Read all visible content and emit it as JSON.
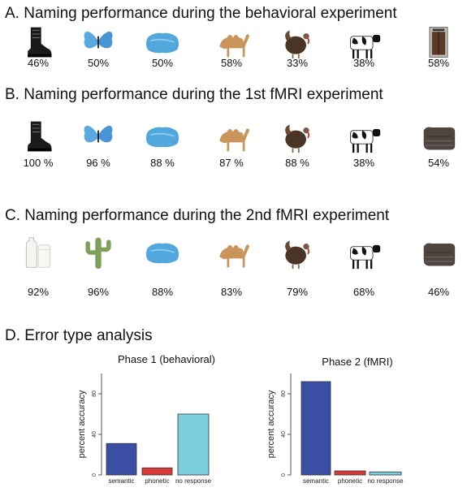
{
  "sections": [
    {
      "title": "A. Naming performance during the behavioral experiment",
      "items": [
        {
          "icon": "boot-icon",
          "percent": "46%"
        },
        {
          "icon": "butterfly-icon",
          "percent": "50%"
        },
        {
          "icon": "pillow-icon",
          "percent": "50%"
        },
        {
          "icon": "camel-icon",
          "percent": "58%"
        },
        {
          "icon": "turkey-icon",
          "percent": "33%"
        },
        {
          "icon": "cow-icon",
          "percent": "38%"
        },
        {
          "icon": "elevator-icon",
          "percent": "58%"
        }
      ]
    },
    {
      "title": "B. Naming performance during the 1st fMRI experiment",
      "items": [
        {
          "icon": "boot-icon",
          "percent": "100 %"
        },
        {
          "icon": "butterfly-icon",
          "percent": "96 %"
        },
        {
          "icon": "pillow-icon",
          "percent": "88 %"
        },
        {
          "icon": "camel-icon",
          "percent": "87 %"
        },
        {
          "icon": "turkey-icon",
          "percent": "88 %"
        },
        {
          "icon": "cow-icon",
          "percent": "38%"
        },
        {
          "icon": "blanket-icon",
          "percent": "54%"
        }
      ]
    },
    {
      "title": "C. Naming performance during the 2nd fMRI experiment",
      "items": [
        {
          "icon": "milk-icon",
          "percent": "92%"
        },
        {
          "icon": "cactus-icon",
          "percent": "96%"
        },
        {
          "icon": "pillow-icon",
          "percent": "88%"
        },
        {
          "icon": "camel-icon",
          "percent": "83%"
        },
        {
          "icon": "turkey-icon",
          "percent": "79%"
        },
        {
          "icon": "cow-icon",
          "percent": "68%"
        },
        {
          "icon": "blanket-icon",
          "percent": "46%"
        }
      ]
    },
    {
      "title": "D. Error type analysis",
      "items": []
    }
  ],
  "chart_data": [
    {
      "type": "bar",
      "title": "Phase 1 (behavioral)",
      "categories": [
        "semantic",
        "phonetic",
        "no response"
      ],
      "values": [
        31,
        7,
        60
      ],
      "colors": [
        "#3a4fa3",
        "#d83a3a",
        "#7ccfdc"
      ],
      "ylabel": "percent accuracy",
      "ylim": [
        0,
        100
      ],
      "yticks": [
        0,
        40,
        80
      ],
      "grid": false
    },
    {
      "type": "bar",
      "title": "Phase 2 (fMRI)",
      "categories": [
        "semantic",
        "phonetic",
        "no response"
      ],
      "values": [
        92,
        4,
        3
      ],
      "colors": [
        "#3a4fa3",
        "#d83a3a",
        "#7ccfdc"
      ],
      "ylabel": "percent accuracy",
      "ylim": [
        0,
        100
      ],
      "yticks": [
        0,
        40,
        80
      ],
      "grid": false
    }
  ]
}
